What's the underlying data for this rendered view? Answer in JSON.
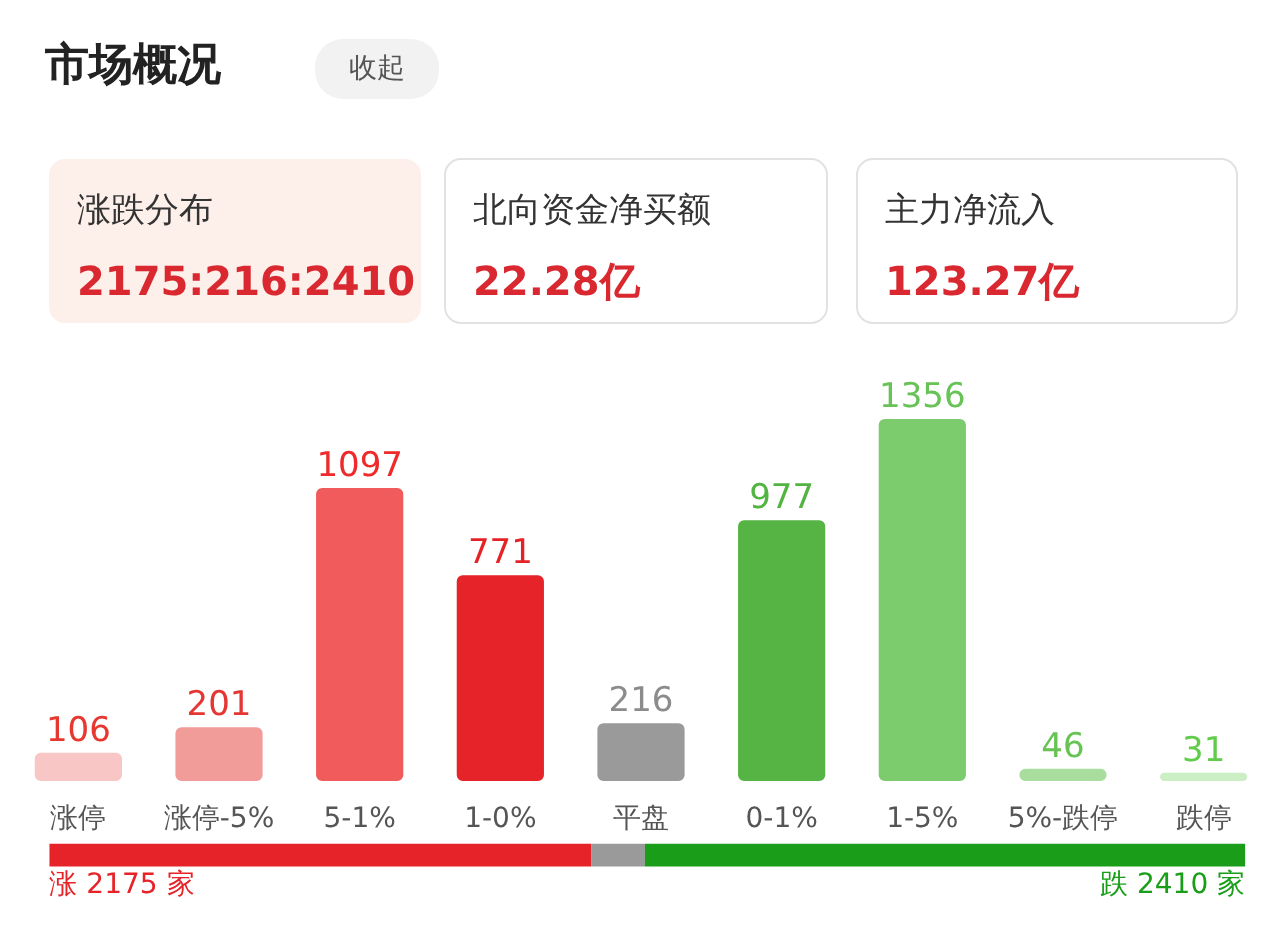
{
  "chart_data": [
    {
      "type": "other",
      "title": "市场概况",
      "annotations": [
        "收起",
        "涨跌分布",
        "2175:216:2410",
        "北向资金净买额",
        "22.28亿",
        "主力净流入",
        "123.27亿"
      ]
    },
    {
      "type": "bar",
      "categories": [
        "涨停",
        "涨停-5%",
        "5-1%",
        "1-0%",
        "平盘",
        "0-1%",
        "1-5%",
        "5%-跌停",
        "跌停"
      ],
      "values": [
        106,
        201,
        1097,
        771,
        216,
        977,
        1356,
        46,
        31
      ],
      "colors": [
        "#f8c6c4",
        "#f29c9a",
        "#f25b5b",
        "#e62328",
        "#9a9a9a",
        "#55b443",
        "#7ccb6c",
        "#a9dd9e",
        "#cbeec4"
      ],
      "data_labels": true
    },
    {
      "type": "bar",
      "orientation": "horizontal",
      "stacked": true,
      "categories": [
        null
      ],
      "series": [
        {
          "color": "#e62328",
          "values": [
            2175
          ],
          "value_labels": [
            "涨 2175 家"
          ]
        },
        {
          "color": "#9a9a9a",
          "values": [
            216
          ],
          "value_labels": [
            null
          ]
        },
        {
          "color": "#1a9e1a",
          "values": [
            2410
          ],
          "value_labels": [
            "跌 2410 家"
          ]
        }
      ]
    }
  ]
}
